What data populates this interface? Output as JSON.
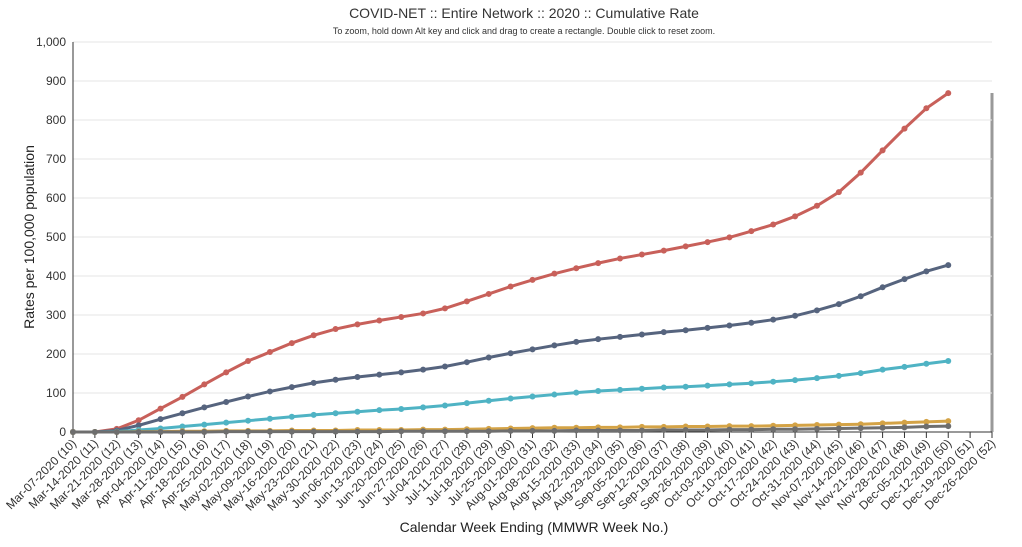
{
  "chart_data": {
    "type": "line",
    "title": "COVID-NET :: Entire Network :: 2020 :: Cumulative Rate",
    "subtitle": "To zoom, hold down Alt key and click and drag to create a rectangle. Double click to reset zoom.",
    "x_label": "Calendar Week Ending (MMWR Week No.)",
    "y_label": "Rates per 100,000 population",
    "categories": [
      "Mar-07-2020 (10)",
      "Mar-14-2020 (11)",
      "Mar-21-2020 (12)",
      "Mar-28-2020 (13)",
      "Apr-04-2020 (14)",
      "Apr-11-2020 (15)",
      "Apr-18-2020 (16)",
      "Apr-25-2020 (17)",
      "May-02-2020 (18)",
      "May-09-2020 (19)",
      "May-16-2020 (20)",
      "May-23-2020 (21)",
      "May-30-2020 (22)",
      "Jun-06-2020 (23)",
      "Jun-13-2020 (24)",
      "Jun-20-2020 (25)",
      "Jun-27-2020 (26)",
      "Jul-04-2020 (27)",
      "Jul-11-2020 (28)",
      "Jul-18-2020 (29)",
      "Jul-25-2020 (30)",
      "Aug-01-2020 (31)",
      "Aug-08-2020 (32)",
      "Aug-15-2020 (33)",
      "Aug-22-2020 (34)",
      "Aug-29-2020 (35)",
      "Sep-05-2020 (36)",
      "Sep-12-2020 (37)",
      "Sep-19-2020 (38)",
      "Sep-26-2020 (39)",
      "Oct-03-2020 (40)",
      "Oct-10-2020 (41)",
      "Oct-17-2020 (42)",
      "Oct-24-2020 (43)",
      "Oct-31-2020 (44)",
      "Nov-07-2020 (45)",
      "Nov-14-2020 (46)",
      "Nov-21-2020 (47)",
      "Nov-28-2020 (48)",
      "Dec-05-2020 (49)",
      "Dec-12-2020 (50)",
      "Dec-19-2020 (51)",
      "Dec-26-2020 (52)"
    ],
    "series": [
      {
        "color": "#c8605a",
        "values": [
          0,
          0,
          8,
          30,
          60,
          90,
          122,
          153,
          182,
          205,
          228,
          248,
          264,
          276,
          286,
          295,
          304,
          317,
          335,
          354,
          373,
          390,
          406,
          420,
          433,
          445,
          455,
          465,
          476,
          487,
          499,
          515,
          532,
          553,
          580,
          615,
          665,
          722,
          778,
          830,
          869,
          null,
          null
        ]
      },
      {
        "color": "#56647e",
        "values": [
          0,
          0,
          4,
          17,
          33,
          48,
          63,
          77,
          91,
          104,
          115,
          126,
          134,
          141,
          147,
          153,
          160,
          168,
          179,
          191,
          202,
          212,
          222,
          231,
          238,
          244,
          250,
          256,
          261,
          267,
          273,
          280,
          288,
          298,
          312,
          328,
          348,
          371,
          392,
          412,
          428,
          null,
          null
        ]
      },
      {
        "color": "#4fb3c4",
        "values": [
          0,
          0,
          1,
          5,
          9,
          14,
          19,
          24,
          29,
          34,
          39,
          44,
          48,
          52,
          56,
          59,
          63,
          68,
          74,
          80,
          86,
          91,
          96,
          101,
          105,
          108,
          111,
          114,
          116,
          119,
          122,
          125,
          129,
          133,
          138,
          144,
          151,
          160,
          167,
          175,
          182,
          null,
          null
        ]
      },
      {
        "color": "#d4a346",
        "values": [
          0,
          0,
          0,
          1,
          1,
          2,
          2,
          3,
          3,
          3,
          4,
          4,
          4,
          5,
          5,
          5,
          6,
          6,
          7,
          8,
          9,
          10,
          11,
          11,
          12,
          12,
          13,
          13,
          14,
          14,
          15,
          15,
          16,
          17,
          18,
          19,
          20,
          22,
          24,
          26,
          28,
          null,
          null
        ]
      },
      {
        "color": "#6e6e6e",
        "values": [
          0,
          0,
          0,
          0,
          0,
          0,
          0,
          1,
          1,
          1,
          1,
          1,
          1,
          1,
          1,
          2,
          2,
          2,
          2,
          2,
          3,
          3,
          3,
          4,
          4,
          4,
          4,
          5,
          5,
          5,
          6,
          6,
          7,
          7,
          8,
          9,
          10,
          11,
          12,
          14,
          15,
          null,
          null
        ]
      }
    ],
    "ylim": [
      0,
      1000
    ],
    "yticks": [
      0,
      100,
      200,
      300,
      400,
      500,
      600,
      700,
      800,
      900,
      {
        "value": 1000,
        "label": "1,000"
      }
    ],
    "grid": true
  }
}
